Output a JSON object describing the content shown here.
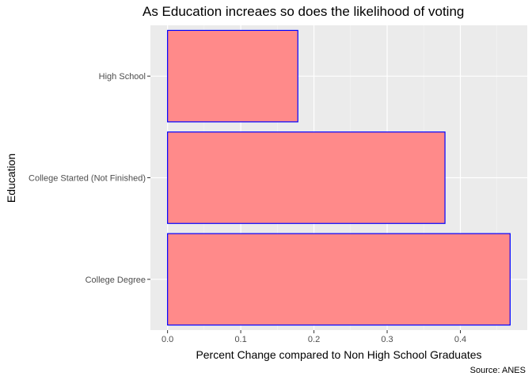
{
  "chart_data": {
    "type": "bar",
    "orientation": "horizontal",
    "title": "As Education increaes so does the likelihood of voting",
    "xlabel": "Percent Change compared to Non High School Graduates",
    "ylabel": "Education",
    "caption": "Source: ANES",
    "categories": [
      "College Degree",
      "College Started (Not Finished)",
      "High School"
    ],
    "values": [
      0.468,
      0.379,
      0.178
    ],
    "xlim": [
      -0.0234,
      0.4914
    ],
    "xticks": [
      0.0,
      0.1,
      0.2,
      0.3,
      0.4
    ],
    "xtick_labels": [
      "0.0",
      "0.1",
      "0.2",
      "0.3",
      "0.4"
    ],
    "grid": true,
    "colors": {
      "bar_fill": "#ff8a8a",
      "bar_stroke": "#0000ff",
      "panel_bg": "#ebebeb",
      "grid_major": "#ffffff",
      "grid_minor": "#f5f5f5"
    }
  }
}
